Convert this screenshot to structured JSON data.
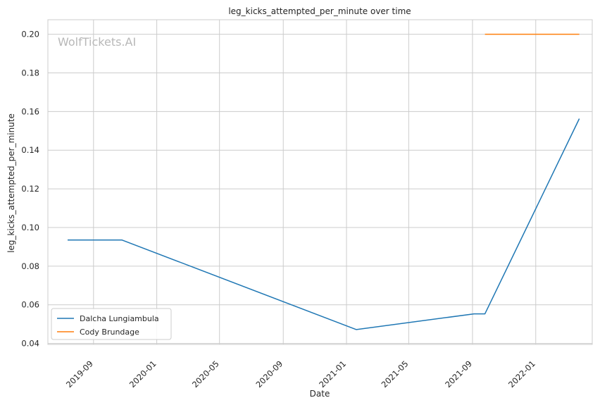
{
  "chart_data": {
    "type": "line",
    "title": "leg_kicks_attempted_per_minute over time",
    "xlabel": "Date",
    "ylabel": "leg_kicks_attempted_per_minute",
    "watermark": "WolfTickets.AI",
    "x_ticks": [
      "2019-09",
      "2020-01",
      "2020-05",
      "2020-09",
      "2021-01",
      "2021-05",
      "2021-09",
      "2022-01"
    ],
    "y_ticks": [
      "0.04",
      "0.06",
      "0.08",
      "0.10",
      "0.12",
      "0.14",
      "0.16",
      "0.18",
      "0.20"
    ],
    "xlim": [
      "2019-06-05",
      "2022-04-20"
    ],
    "ylim": [
      0.0395,
      0.2075
    ],
    "grid": true,
    "legend_position": "lower-left",
    "series": [
      {
        "name": "Dalcha Lungiambula",
        "color": "#1f77b4",
        "points": [
          {
            "x": "2019-07-13",
            "y": 0.0935
          },
          {
            "x": "2019-10-26",
            "y": 0.0935
          },
          {
            "x": "2021-01-20",
            "y": 0.0472
          },
          {
            "x": "2021-09-04",
            "y": 0.0553
          },
          {
            "x": "2021-09-25",
            "y": 0.0553
          },
          {
            "x": "2022-03-26",
            "y": 0.1563
          }
        ]
      },
      {
        "name": "Cody Brundage",
        "color": "#ff7f0e",
        "points": [
          {
            "x": "2021-09-25",
            "y": 0.2
          },
          {
            "x": "2022-03-26",
            "y": 0.2
          }
        ]
      }
    ]
  }
}
